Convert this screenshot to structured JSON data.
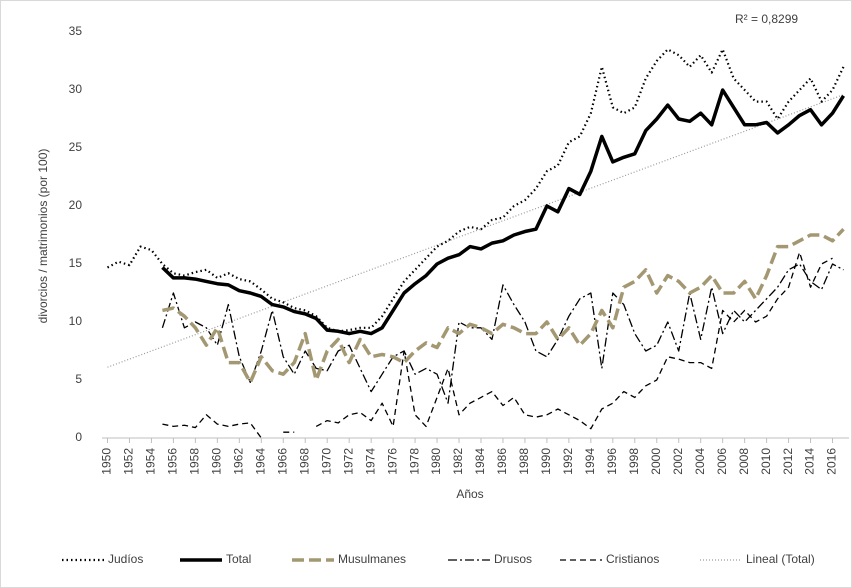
{
  "chart_data": {
    "type": "line",
    "y_label": "divorcios  / matrimonios  (por 100)",
    "x_label": "Años",
    "annotation": "R² = 0,8299",
    "x": [
      1950,
      1951,
      1952,
      1953,
      1954,
      1955,
      1956,
      1957,
      1958,
      1959,
      1960,
      1961,
      1962,
      1963,
      1964,
      1965,
      1966,
      1967,
      1968,
      1969,
      1970,
      1971,
      1972,
      1973,
      1974,
      1975,
      1976,
      1977,
      1978,
      1979,
      1980,
      1981,
      1982,
      1983,
      1984,
      1985,
      1986,
      1987,
      1988,
      1989,
      1990,
      1991,
      1992,
      1993,
      1994,
      1995,
      1996,
      1997,
      1998,
      1999,
      2000,
      2001,
      2002,
      2003,
      2004,
      2005,
      2006,
      2007,
      2008,
      2009,
      2010,
      2011,
      2012,
      2013,
      2014,
      2015,
      2016,
      2017
    ],
    "series": [
      {
        "name": "Judíos",
        "color": "#000000",
        "style": "dotted",
        "values": [
          14.7,
          15.2,
          14.9,
          16.5,
          16.2,
          15.0,
          14.2,
          14.0,
          14.3,
          14.5,
          13.8,
          14.2,
          13.7,
          13.5,
          12.8,
          12.0,
          11.7,
          11.2,
          11.0,
          10.5,
          9.5,
          9.2,
          9.3,
          9.5,
          9.5,
          10.5,
          12.0,
          13.5,
          14.5,
          15.5,
          16.5,
          17.0,
          17.8,
          18.2,
          18.0,
          18.8,
          19.0,
          20.0,
          20.5,
          21.5,
          23.0,
          23.5,
          25.5,
          26.0,
          28.0,
          32.0,
          28.5,
          28.0,
          28.5,
          31.0,
          32.5,
          33.5,
          33.0,
          32.0,
          33.0,
          31.5,
          33.5,
          31.0,
          30.0,
          29.0,
          29.0,
          27.5,
          29.0,
          30.0,
          31.0,
          29.0,
          30.0,
          32.0
        ]
      },
      {
        "name": "Total",
        "color": "#000000",
        "style": "solid-thick",
        "values": [
          null,
          null,
          null,
          null,
          null,
          14.7,
          13.8,
          13.8,
          13.7,
          13.5,
          13.3,
          13.2,
          12.7,
          12.5,
          12.2,
          11.5,
          11.3,
          10.9,
          10.7,
          10.3,
          9.3,
          9.2,
          9.0,
          9.2,
          9.0,
          9.5,
          11.0,
          12.5,
          13.3,
          14.0,
          15.0,
          15.5,
          15.8,
          16.5,
          16.3,
          16.8,
          17.0,
          17.5,
          17.8,
          18.0,
          20.0,
          19.5,
          21.5,
          21.0,
          23.0,
          26.0,
          23.8,
          24.2,
          24.5,
          26.5,
          27.5,
          28.7,
          27.5,
          27.3,
          28.0,
          27.0,
          30.0,
          28.5,
          27.0,
          27.0,
          27.2,
          26.3,
          27.0,
          27.8,
          28.3,
          27.0,
          28.0,
          29.5
        ]
      },
      {
        "name": "Musulmanes",
        "color": "#a39872",
        "style": "dashed-thick",
        "values": [
          null,
          null,
          null,
          null,
          null,
          11.0,
          11.2,
          10.5,
          9.5,
          8.0,
          9.5,
          6.5,
          6.5,
          4.8,
          7.0,
          5.8,
          5.5,
          6.5,
          9.0,
          5.0,
          7.5,
          8.5,
          6.5,
          8.5,
          7.0,
          7.2,
          7.0,
          6.5,
          7.5,
          8.2,
          7.8,
          9.5,
          9.0,
          9.8,
          9.5,
          9.0,
          9.8,
          9.5,
          9.0,
          9.0,
          10.0,
          8.5,
          9.5,
          8.0,
          9.0,
          11.0,
          9.5,
          13.0,
          13.5,
          14.5,
          12.5,
          14.0,
          13.5,
          12.5,
          13.0,
          14.0,
          12.5,
          12.5,
          13.5,
          12.0,
          14.0,
          16.5,
          16.5,
          17.0,
          17.5,
          17.5,
          17.0,
          18.0
        ]
      },
      {
        "name": "Drusos",
        "color": "#000000",
        "style": "dash-dot",
        "values": [
          null,
          null,
          null,
          null,
          null,
          9.5,
          12.5,
          9.5,
          10.0,
          9.5,
          8.0,
          11.5,
          7.0,
          4.8,
          7.5,
          11.0,
          7.0,
          5.5,
          7.5,
          6.0,
          5.8,
          7.5,
          8.0,
          6.0,
          4.0,
          5.5,
          7.0,
          7.5,
          5.5,
          6.0,
          5.5,
          3.0,
          10.0,
          9.5,
          9.5,
          8.5,
          13.2,
          11.5,
          10.0,
          7.5,
          7.0,
          8.5,
          10.5,
          12.0,
          12.5,
          6.0,
          12.5,
          11.5,
          9.0,
          7.5,
          8.0,
          10.0,
          7.5,
          12.5,
          8.5,
          13.0,
          9.0,
          11.0,
          10.0,
          11.0,
          12.0,
          13.0,
          14.5,
          15.0,
          13.5,
          12.8,
          15.0,
          14.5
        ]
      },
      {
        "name": "Cristianos",
        "color": "#000000",
        "style": "dashed",
        "values": [
          null,
          null,
          null,
          null,
          null,
          1.2,
          1.0,
          1.1,
          0.9,
          2.0,
          1.2,
          1.0,
          1.2,
          1.3,
          0.0,
          null,
          0.5,
          0.5,
          null,
          1.0,
          1.5,
          1.3,
          2.0,
          2.2,
          1.5,
          3.0,
          1.0,
          7.5,
          2.0,
          1.0,
          3.5,
          6.0,
          2.0,
          3.0,
          3.5,
          4.0,
          2.8,
          3.5,
          2.0,
          1.8,
          2.0,
          2.5,
          2.0,
          1.5,
          0.8,
          2.5,
          3.0,
          4.0,
          3.5,
          4.5,
          5.0,
          7.0,
          6.8,
          6.5,
          6.5,
          6.0,
          11.0,
          10.0,
          11.0,
          10.0,
          10.5,
          12.0,
          13.0,
          16.0,
          13.0,
          15.0,
          15.5,
          null
        ]
      }
    ],
    "trend": {
      "name": "Lineal (Total)",
      "color": "#999999",
      "style": "fine-dotted",
      "x": [
        1950,
        2017
      ],
      "values": [
        6.1,
        29.6
      ]
    },
    "xlim": [
      1949.5,
      2017.5
    ],
    "xticks": [
      1950,
      1952,
      1954,
      1956,
      1958,
      1960,
      1962,
      1964,
      1966,
      1968,
      1970,
      1972,
      1974,
      1976,
      1978,
      1980,
      1982,
      1984,
      1986,
      1988,
      1990,
      1992,
      1994,
      1996,
      1998,
      2000,
      2002,
      2004,
      2006,
      2008,
      2010,
      2012,
      2014,
      2016
    ],
    "ylim": [
      0,
      35
    ],
    "yticks": [
      0,
      5,
      10,
      15,
      20,
      25,
      30,
      35
    ],
    "grid": false,
    "legend": "bottom"
  }
}
